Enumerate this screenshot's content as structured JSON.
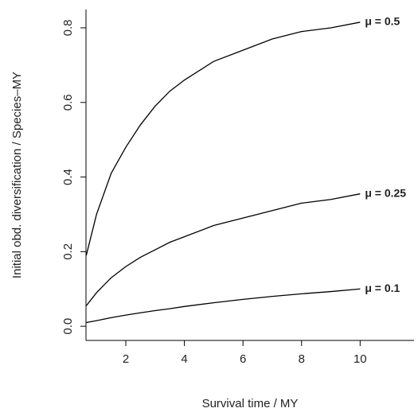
{
  "chart_data": {
    "type": "line",
    "x_label": "Survival time  / MY",
    "y_label": "Initial obd. diversification / Species–MY",
    "x": [
      0.65,
      1,
      1.5,
      2,
      2.5,
      3,
      3.5,
      4,
      5,
      6,
      7,
      8,
      9,
      10
    ],
    "series": [
      {
        "name": "μ = 0.5",
        "color": "#000000",
        "values": [
          0.19,
          0.3,
          0.41,
          0.48,
          0.54,
          0.59,
          0.63,
          0.66,
          0.71,
          0.74,
          0.77,
          0.79,
          0.8,
          0.815
        ]
      },
      {
        "name": "μ = 0.25",
        "color": "#000000",
        "values": [
          0.055,
          0.09,
          0.13,
          0.16,
          0.185,
          0.205,
          0.225,
          0.24,
          0.27,
          0.29,
          0.31,
          0.33,
          0.34,
          0.355
        ]
      },
      {
        "name": "μ = 0.1",
        "color": "#000000",
        "values": [
          0.01,
          0.015,
          0.023,
          0.03,
          0.036,
          0.042,
          0.047,
          0.053,
          0.063,
          0.072,
          0.08,
          0.087,
          0.093,
          0.1
        ]
      }
    ],
    "xlim": [
      0.64,
      11.84
    ],
    "xticks": [
      2,
      4,
      6,
      8,
      10
    ],
    "ylim": [
      -0.038,
      0.849
    ],
    "yticks": [
      {
        "value": 0,
        "label": "0.0"
      },
      0.2,
      0.4,
      0.6,
      0.8
    ]
  }
}
